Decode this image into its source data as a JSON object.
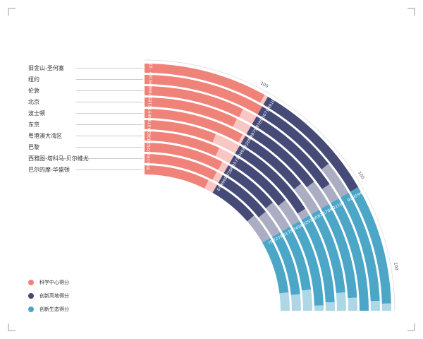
{
  "chart_data": {
    "type": "radial-bar",
    "series": [
      {
        "name": "科学中心得分",
        "color": "#f08379",
        "values": [
          97.13,
          100,
          86.95,
          85.78,
          97.21,
          73.46,
          82.43,
          92.33,
          91.72,
          87.31
        ]
      },
      {
        "name": "创新高地得分",
        "color": "#454a77",
        "values": [
          100,
          71.49,
          85.5,
          75.97,
          69.89,
          92.22,
          73.04,
          66.25,
          69.23,
          63.49
        ]
      },
      {
        "name": "创新生态得分",
        "color": "#4ba6c7",
        "values": [
          94.32,
          91.95,
          100,
          88.22,
          82.57,
          91.3,
          94.32,
          75.74,
          79.61,
          75.72
        ]
      }
    ],
    "categories": [
      "旧金山-圣何塞",
      "纽约",
      "伦敦",
      "北京",
      "波士顿",
      "东京",
      "粤港澳大湾区",
      "巴黎",
      "西雅图-塔科马-贝尔维尤",
      "巴尔的摩-华盛顿"
    ],
    "value_labels": {
      "science": [
        "97.13",
        "100",
        "86.95",
        "85.78",
        "97.21",
        "73.46",
        "82.43",
        "92.33",
        "91.72",
        "87.31"
      ],
      "highland": [
        "100",
        "71.49",
        "85.50",
        "75.97",
        "69.89",
        "92.22",
        "73.04",
        "66.25",
        "69.23",
        "63.49"
      ],
      "ecology": [
        "94.32",
        "91.95",
        "100",
        "88.22",
        "82.57",
        "91.30",
        "94.32",
        "75.74",
        "79.61",
        "75.72"
      ]
    },
    "scale_labels": [
      "100",
      "100",
      "100"
    ],
    "segment_max": 100,
    "legend_placement": "bottom-left"
  },
  "legend": [
    {
      "label": "科学中心得分",
      "color": "#f08379"
    },
    {
      "label": "创新高地得分",
      "color": "#454a77"
    },
    {
      "label": "创新生态得分",
      "color": "#4ba6c7"
    }
  ]
}
